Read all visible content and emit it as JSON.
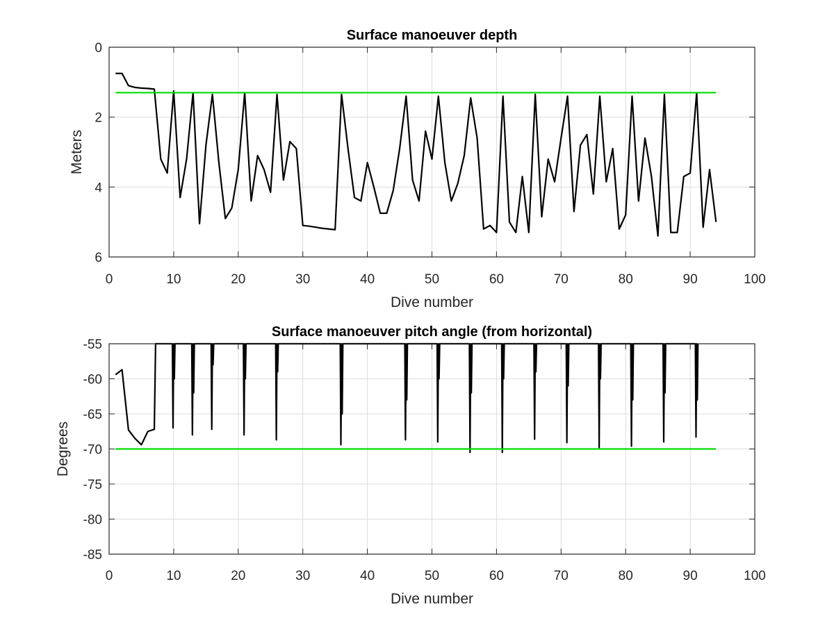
{
  "chart_data": [
    {
      "type": "line",
      "title": "Surface manoeuver depth",
      "xlabel": "Dive number",
      "ylabel": "Meters",
      "xlim": [
        0,
        100
      ],
      "ylim": [
        0,
        6
      ],
      "y_reversed": true,
      "xticks": [
        "0",
        "10",
        "20",
        "30",
        "40",
        "50",
        "60",
        "70",
        "80",
        "90",
        "100"
      ],
      "yticks": [
        "0",
        "2",
        "4",
        "6"
      ],
      "grid": true,
      "series": [
        {
          "color": "#000000",
          "x": [
            1,
            2,
            3,
            4,
            5,
            6,
            7,
            8,
            9,
            10,
            11,
            12,
            13,
            14,
            15,
            16,
            17,
            18,
            19,
            20,
            21,
            22,
            23,
            24,
            25,
            26,
            27,
            28,
            29,
            30,
            31,
            32,
            33,
            34,
            35,
            36,
            37,
            38,
            39,
            40,
            41,
            42,
            43,
            44,
            45,
            46,
            47,
            48,
            49,
            50,
            51,
            52,
            53,
            54,
            55,
            56,
            57,
            58,
            59,
            60,
            61,
            62,
            63,
            64,
            65,
            66,
            67,
            68,
            69,
            70,
            71,
            72,
            73,
            74,
            75,
            76,
            77,
            78,
            79,
            80,
            81,
            82,
            83,
            84,
            85,
            86,
            87,
            88,
            89,
            90,
            91,
            92,
            93,
            94
          ],
          "values": [
            0.75,
            0.75,
            1.1,
            1.15,
            1.17,
            1.18,
            1.2,
            3.2,
            3.6,
            1.25,
            4.3,
            3.2,
            1.3,
            5.05,
            2.8,
            1.35,
            3.3,
            4.9,
            4.6,
            3.5,
            1.3,
            4.4,
            3.1,
            3.5,
            4.15,
            1.35,
            3.8,
            2.7,
            2.9,
            5.1,
            5.12,
            5.15,
            5.18,
            5.2,
            5.22,
            1.35,
            2.9,
            4.3,
            4.4,
            3.3,
            4.0,
            4.75,
            4.75,
            4.1,
            2.9,
            1.4,
            3.8,
            4.4,
            2.4,
            3.2,
            1.4,
            3.3,
            4.4,
            3.9,
            3.1,
            1.45,
            2.6,
            5.2,
            5.1,
            5.3,
            1.4,
            5.0,
            5.3,
            3.7,
            5.3,
            1.35,
            4.85,
            3.2,
            3.85,
            2.6,
            1.4,
            4.7,
            2.8,
            2.5,
            4.2,
            1.4,
            3.85,
            2.9,
            5.2,
            4.8,
            1.4,
            4.4,
            2.6,
            3.7,
            5.4,
            1.35,
            5.3,
            5.3,
            3.7,
            3.6,
            1.3,
            5.15,
            3.5,
            5.0
          ]
        },
        {
          "color": "#00dd00",
          "x": [
            1,
            94
          ],
          "values": [
            1.3,
            1.3
          ]
        }
      ]
    },
    {
      "type": "line",
      "title": "Surface manoeuver pitch angle (from horizontal)",
      "xlabel": "Dive number",
      "ylabel": "Degrees",
      "xlim": [
        0,
        100
      ],
      "ylim": [
        -85,
        -55
      ],
      "xticks": [
        "0",
        "10",
        "20",
        "30",
        "40",
        "50",
        "60",
        "70",
        "80",
        "90",
        "100"
      ],
      "yticks": [
        "-55",
        "-60",
        "-65",
        "-70",
        "-75",
        "-80",
        "-85"
      ],
      "grid": true,
      "series": [
        {
          "color": "#000000",
          "x": [
            1,
            2,
            3,
            4,
            5,
            6,
            7,
            7.2,
            7.4,
            9.8,
            9.9,
            10,
            10.1,
            10.2,
            12.8,
            12.9,
            13,
            13.1,
            13.2,
            15.8,
            15.9,
            16,
            16.1,
            16.2,
            20.8,
            20.9,
            21,
            21.1,
            21.2,
            25.8,
            25.9,
            26,
            26.1,
            26.2,
            35.8,
            35.9,
            36,
            36.1,
            36.2,
            45.8,
            45.9,
            46,
            46.1,
            46.2,
            50.8,
            50.9,
            51,
            51.1,
            51.2,
            55.8,
            55.9,
            56,
            56.1,
            56.2,
            60.8,
            60.9,
            61,
            61.1,
            61.2,
            65.8,
            65.9,
            66,
            66.1,
            66.2,
            70.8,
            70.9,
            71,
            71.1,
            71.2,
            75.8,
            75.9,
            76,
            76.1,
            76.2,
            80.8,
            80.9,
            81,
            81.1,
            81.2,
            85.8,
            85.9,
            86,
            86.1,
            86.2,
            90.8,
            90.9,
            91,
            91.1,
            91.2
          ],
          "values": [
            -59.4,
            -58.7,
            -67.3,
            -68.5,
            -69.4,
            -67.5,
            -67.2,
            -55,
            -55,
            -55,
            -67,
            -55,
            -60,
            -55,
            -55,
            -68,
            -55,
            -62,
            -55,
            -55,
            -67.2,
            -55,
            -58,
            -55,
            -55,
            -68,
            -55,
            -60,
            -55,
            -55,
            -68.7,
            -55,
            -59,
            -55,
            -55,
            -69.4,
            -55,
            -65,
            -55,
            -55,
            -68.7,
            -55,
            -63,
            -55,
            -55,
            -69,
            -55,
            -60,
            -55,
            -55,
            -70.5,
            -55,
            -62,
            -55,
            -55,
            -70.5,
            -55,
            -60,
            -55,
            -55,
            -68.6,
            -55,
            -59,
            -55,
            -55,
            -69.1,
            -55,
            -61,
            -55,
            -55,
            -69.8,
            -55,
            -60,
            -55,
            -55,
            -69.6,
            -55,
            -63,
            -55,
            -55,
            -69,
            -55,
            -62,
            -55,
            -55,
            -68.3,
            -55,
            -63,
            -55
          ]
        },
        {
          "color": "#00dd00",
          "x": [
            1,
            94
          ],
          "values": [
            -70,
            -70
          ]
        }
      ]
    }
  ]
}
